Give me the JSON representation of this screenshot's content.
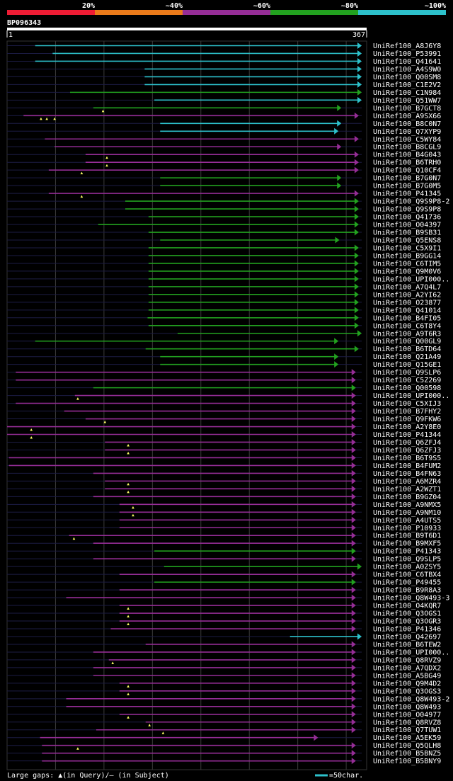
{
  "colors": {
    "c20": "#ee1c34",
    "c40": "#ea7a1a",
    "c60": "#952d96",
    "c80": "#22a11f",
    "c100": "#2dc1cb"
  },
  "legend": [
    "20%",
    "~40%",
    "~60%",
    "~80%",
    "~100%"
  ],
  "chart_data": {
    "type": "alignment",
    "title": "BP096343",
    "query_length": 367,
    "axis_start_label": "1",
    "axis_end_label": "367",
    "scale_note": "=50char.",
    "gap_legend": "Large gaps: ▲(in Query)/– (in Subject)",
    "hits": [
      {
        "id": "UniRef100_A8J6Y8",
        "start": 30,
        "end": 367,
        "identity": 100,
        "gaps": []
      },
      {
        "id": "UniRef100_P53991",
        "start": 48,
        "end": 367,
        "identity": 100,
        "gaps": []
      },
      {
        "id": "UniRef100_Q41641",
        "start": 30,
        "end": 367,
        "identity": 100,
        "gaps": []
      },
      {
        "id": "UniRef100_A4S9W0",
        "start": 143,
        "end": 367,
        "identity": 100,
        "gaps": []
      },
      {
        "id": "UniRef100_Q00SM8",
        "start": 143,
        "end": 367,
        "identity": 100,
        "gaps": []
      },
      {
        "id": "UniRef100_C1E2V2",
        "start": 143,
        "end": 367,
        "identity": 100,
        "gaps": []
      },
      {
        "id": "UniRef100_C1N984",
        "start": 66,
        "end": 367,
        "identity": 80,
        "gaps": []
      },
      {
        "id": "UniRef100_Q51WW7",
        "start": 153,
        "end": 367,
        "identity": 100,
        "gaps": []
      },
      {
        "id": "UniRef100_B7GCT8",
        "start": 90,
        "end": 346,
        "identity": 80,
        "gaps": [
          100
        ]
      },
      {
        "id": "UniRef100_A9SX66",
        "start": 18,
        "end": 364,
        "identity": 60,
        "gaps": [
          36,
          42,
          50
        ]
      },
      {
        "id": "UniRef100_B8C0N7",
        "start": 159,
        "end": 346,
        "identity": 100,
        "gaps": []
      },
      {
        "id": "UniRef100_Q7XYP9",
        "start": 159,
        "end": 343,
        "identity": 100,
        "gaps": []
      },
      {
        "id": "UniRef100_C5WY84",
        "start": 40,
        "end": 364,
        "identity": 60,
        "gaps": []
      },
      {
        "id": "UniRef100_B8CGL9",
        "start": 50,
        "end": 346,
        "identity": 60,
        "gaps": []
      },
      {
        "id": "UniRef100_B4G043",
        "start": 82,
        "end": 364,
        "identity": 60,
        "gaps": [
          104
        ]
      },
      {
        "id": "UniRef100_B6TRH0",
        "start": 82,
        "end": 364,
        "identity": 60,
        "gaps": [
          104
        ]
      },
      {
        "id": "UniRef100_Q10CF4",
        "start": 44,
        "end": 364,
        "identity": 60,
        "gaps": [
          78
        ]
      },
      {
        "id": "UniRef100_B7G0N7",
        "start": 159,
        "end": 346,
        "identity": 80,
        "gaps": []
      },
      {
        "id": "UniRef100_B7G0M5",
        "start": 159,
        "end": 346,
        "identity": 80,
        "gaps": []
      },
      {
        "id": "UniRef100_P41345",
        "start": 44,
        "end": 364,
        "identity": 60,
        "gaps": [
          78
        ]
      },
      {
        "id": "UniRef100_Q9S9P8-2",
        "start": 123,
        "end": 364,
        "identity": 80,
        "gaps": []
      },
      {
        "id": "UniRef100_Q9S9P8",
        "start": 123,
        "end": 364,
        "identity": 80,
        "gaps": []
      },
      {
        "id": "UniRef100_Q41736",
        "start": 147,
        "end": 364,
        "identity": 80,
        "gaps": []
      },
      {
        "id": "UniRef100_O04397",
        "start": 95,
        "end": 364,
        "identity": 80,
        "gaps": []
      },
      {
        "id": "UniRef100_B9SB31",
        "start": 147,
        "end": 364,
        "identity": 80,
        "gaps": []
      },
      {
        "id": "UniRef100_Q5ENS8",
        "start": 159,
        "end": 344,
        "identity": 80,
        "gaps": []
      },
      {
        "id": "UniRef100_C5X9I1",
        "start": 147,
        "end": 364,
        "identity": 80,
        "gaps": []
      },
      {
        "id": "UniRef100_B9GG14",
        "start": 147,
        "end": 364,
        "identity": 80,
        "gaps": []
      },
      {
        "id": "UniRef100_C6TIM5",
        "start": 147,
        "end": 364,
        "identity": 80,
        "gaps": []
      },
      {
        "id": "UniRef100_Q9M0V6",
        "start": 147,
        "end": 364,
        "identity": 80,
        "gaps": []
      },
      {
        "id": "UniRef100_UPI000..",
        "start": 147,
        "end": 364,
        "identity": 80,
        "gaps": []
      },
      {
        "id": "UniRef100_A7Q4L7",
        "start": 147,
        "end": 364,
        "identity": 80,
        "gaps": []
      },
      {
        "id": "UniRef100_A2YI62",
        "start": 147,
        "end": 364,
        "identity": 80,
        "gaps": []
      },
      {
        "id": "UniRef100_O23877",
        "start": 147,
        "end": 364,
        "identity": 80,
        "gaps": []
      },
      {
        "id": "UniRef100_Q41014",
        "start": 147,
        "end": 364,
        "identity": 80,
        "gaps": []
      },
      {
        "id": "UniRef100_B4FI05",
        "start": 146,
        "end": 364,
        "identity": 80,
        "gaps": []
      },
      {
        "id": "UniRef100_C6T8Y4",
        "start": 147,
        "end": 364,
        "identity": 80,
        "gaps": []
      },
      {
        "id": "UniRef100_A9T6R3",
        "start": 177,
        "end": 367,
        "identity": 80,
        "gaps": []
      },
      {
        "id": "UniRef100_Q00GL9",
        "start": 30,
        "end": 343,
        "identity": 80,
        "gaps": []
      },
      {
        "id": "UniRef100_B6TD64",
        "start": 144,
        "end": 364,
        "identity": 80,
        "gaps": []
      },
      {
        "id": "UniRef100_Q21A49",
        "start": 159,
        "end": 343,
        "identity": 80,
        "gaps": []
      },
      {
        "id": "UniRef100_Q15GE1",
        "start": 159,
        "end": 343,
        "identity": 80,
        "gaps": []
      },
      {
        "id": "UniRef100_Q9SLP6",
        "start": 10,
        "end": 361,
        "identity": 60,
        "gaps": []
      },
      {
        "id": "UniRef100_C5Z269",
        "start": 10,
        "end": 361,
        "identity": 60,
        "gaps": []
      },
      {
        "id": "UniRef100_Q00598",
        "start": 90,
        "end": 361,
        "identity": 80,
        "gaps": []
      },
      {
        "id": "UniRef100_UPI000..",
        "start": 71,
        "end": 361,
        "identity": 60,
        "gaps": [
          74
        ]
      },
      {
        "id": "UniRef100_C5XIJ3",
        "start": 10,
        "end": 361,
        "identity": 60,
        "gaps": []
      },
      {
        "id": "UniRef100_B7FHY2",
        "start": 60,
        "end": 361,
        "identity": 60,
        "gaps": []
      },
      {
        "id": "UniRef100_Q9FKW6",
        "start": 82,
        "end": 361,
        "identity": 60,
        "gaps": [
          102
        ]
      },
      {
        "id": "UniRef100_A2Y8E0",
        "start": 1,
        "end": 361,
        "identity": 60,
        "gaps": [
          26
        ]
      },
      {
        "id": "UniRef100_P41344",
        "start": 1,
        "end": 361,
        "identity": 60,
        "gaps": [
          26
        ]
      },
      {
        "id": "UniRef100_Q6ZFJ4",
        "start": 102,
        "end": 361,
        "identity": 60,
        "gaps": [
          126
        ]
      },
      {
        "id": "UniRef100_Q6ZFJ3",
        "start": 102,
        "end": 361,
        "identity": 60,
        "gaps": [
          126
        ]
      },
      {
        "id": "UniRef100_B6T9S5",
        "start": 3,
        "end": 361,
        "identity": 60,
        "gaps": []
      },
      {
        "id": "UniRef100_B4FUM2",
        "start": 3,
        "end": 361,
        "identity": 60,
        "gaps": []
      },
      {
        "id": "UniRef100_B4FN63",
        "start": 90,
        "end": 361,
        "identity": 60,
        "gaps": []
      },
      {
        "id": "UniRef100_A6MZR4",
        "start": 102,
        "end": 361,
        "identity": 60,
        "gaps": [
          126
        ]
      },
      {
        "id": "UniRef100_A2WZT1",
        "start": 102,
        "end": 361,
        "identity": 60,
        "gaps": [
          126
        ]
      },
      {
        "id": "UniRef100_B9GZ04",
        "start": 90,
        "end": 361,
        "identity": 60,
        "gaps": []
      },
      {
        "id": "UniRef100_A9NMX5",
        "start": 117,
        "end": 361,
        "identity": 60,
        "gaps": [
          131
        ]
      },
      {
        "id": "UniRef100_A9NM10",
        "start": 117,
        "end": 361,
        "identity": 60,
        "gaps": [
          131
        ]
      },
      {
        "id": "UniRef100_A4UTS5",
        "start": 117,
        "end": 361,
        "identity": 60,
        "gaps": []
      },
      {
        "id": "UniRef100_P10933",
        "start": 117,
        "end": 361,
        "identity": 60,
        "gaps": []
      },
      {
        "id": "UniRef100_B9T6D1",
        "start": 65,
        "end": 361,
        "identity": 60,
        "gaps": [
          70
        ]
      },
      {
        "id": "UniRef100_B9MXF5",
        "start": 90,
        "end": 361,
        "identity": 60,
        "gaps": []
      },
      {
        "id": "UniRef100_P41343",
        "start": 153,
        "end": 361,
        "identity": 80,
        "gaps": []
      },
      {
        "id": "UniRef100_Q9SLP5",
        "start": 90,
        "end": 361,
        "identity": 60,
        "gaps": []
      },
      {
        "id": "UniRef100_A0ZSY5",
        "start": 163,
        "end": 367,
        "identity": 80,
        "gaps": []
      },
      {
        "id": "UniRef100_C6TBX4",
        "start": 117,
        "end": 361,
        "identity": 60,
        "gaps": []
      },
      {
        "id": "UniRef100_P49455",
        "start": 153,
        "end": 361,
        "identity": 80,
        "gaps": []
      },
      {
        "id": "UniRef100_B9R8A3",
        "start": 117,
        "end": 361,
        "identity": 60,
        "gaps": []
      },
      {
        "id": "UniRef100_Q8W493-3",
        "start": 62,
        "end": 361,
        "identity": 60,
        "gaps": []
      },
      {
        "id": "UniRef100_O4KQR7",
        "start": 117,
        "end": 361,
        "identity": 60,
        "gaps": [
          126
        ]
      },
      {
        "id": "UniRef100_Q3OGS1",
        "start": 117,
        "end": 361,
        "identity": 60,
        "gaps": [
          126
        ]
      },
      {
        "id": "UniRef100_Q3OGR3",
        "start": 117,
        "end": 361,
        "identity": 60,
        "gaps": [
          126
        ]
      },
      {
        "id": "UniRef100_P41346",
        "start": 108,
        "end": 361,
        "identity": 60,
        "gaps": []
      },
      {
        "id": "UniRef100_Q42697",
        "start": 293,
        "end": 367,
        "identity": 100,
        "gaps": []
      },
      {
        "id": "UniRef100_B6TEW2",
        "start": 144,
        "end": 361,
        "identity": 60,
        "gaps": []
      },
      {
        "id": "UniRef100_UPI000..",
        "start": 90,
        "end": 361,
        "identity": 60,
        "gaps": []
      },
      {
        "id": "UniRef100_Q8RVZ9",
        "start": 106,
        "end": 361,
        "identity": 60,
        "gaps": [
          110
        ]
      },
      {
        "id": "UniRef100_A7QDX2",
        "start": 90,
        "end": 361,
        "identity": 60,
        "gaps": []
      },
      {
        "id": "UniRef100_A5BG49",
        "start": 90,
        "end": 361,
        "identity": 60,
        "gaps": []
      },
      {
        "id": "UniRef100_Q9M4D2",
        "start": 117,
        "end": 361,
        "identity": 60,
        "gaps": [
          126
        ]
      },
      {
        "id": "UniRef100_Q3OGS3",
        "start": 117,
        "end": 361,
        "identity": 60,
        "gaps": [
          126
        ]
      },
      {
        "id": "UniRef100_Q8W493-2",
        "start": 62,
        "end": 361,
        "identity": 60,
        "gaps": []
      },
      {
        "id": "UniRef100_Q8W493",
        "start": 62,
        "end": 361,
        "identity": 60,
        "gaps": []
      },
      {
        "id": "UniRef100_O04977",
        "start": 117,
        "end": 361,
        "identity": 60,
        "gaps": [
          126
        ]
      },
      {
        "id": "UniRef100_Q8RVZ8",
        "start": 144,
        "end": 361,
        "identity": 60,
        "gaps": [
          148
        ]
      },
      {
        "id": "UniRef100_Q7TUW1",
        "start": 93,
        "end": 361,
        "identity": 60,
        "gaps": [
          162
        ]
      },
      {
        "id": "UniRef100_A5EK59",
        "start": 35,
        "end": 322,
        "identity": 60,
        "gaps": []
      },
      {
        "id": "UniRef100_Q5QLH8",
        "start": 37,
        "end": 361,
        "identity": 60,
        "gaps": [
          74
        ]
      },
      {
        "id": "UniRef100_B5BNZ5",
        "start": 37,
        "end": 361,
        "identity": 60,
        "gaps": []
      },
      {
        "id": "UniRef100_B5BNY9",
        "start": 37,
        "end": 361,
        "identity": 60,
        "gaps": []
      }
    ]
  }
}
